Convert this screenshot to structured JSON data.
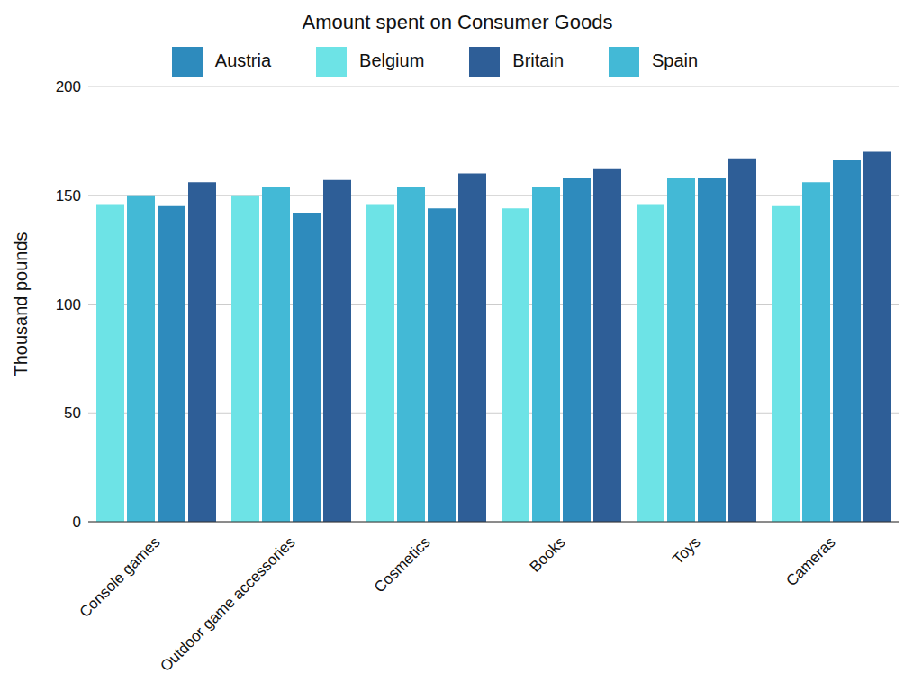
{
  "chart_data": {
    "type": "bar",
    "title": "Amount spent on Consumer Goods",
    "y_label": "Thousand pounds",
    "categories": [
      "Console games",
      "Outdoor game accessories",
      "Cosmetics",
      "Books",
      "Toys",
      "Cameras"
    ],
    "series": [
      {
        "name": "Belgium",
        "color": "#6de3e6",
        "values": [
          146,
          150,
          146,
          144,
          146,
          145
        ]
      },
      {
        "name": "Spain",
        "color": "#43b9d6",
        "values": [
          150,
          154,
          154,
          154,
          158,
          156
        ]
      },
      {
        "name": "Austria",
        "color": "#2e8bbd",
        "values": [
          145,
          142,
          144,
          158,
          158,
          166
        ]
      },
      {
        "name": "Britain",
        "color": "#2e5e97",
        "values": [
          156,
          157,
          160,
          162,
          167,
          170
        ]
      }
    ],
    "ylim": [
      0,
      200
    ],
    "yticks": [
      0,
      50,
      100,
      150,
      200
    ],
    "grid": true,
    "legend": "top"
  }
}
